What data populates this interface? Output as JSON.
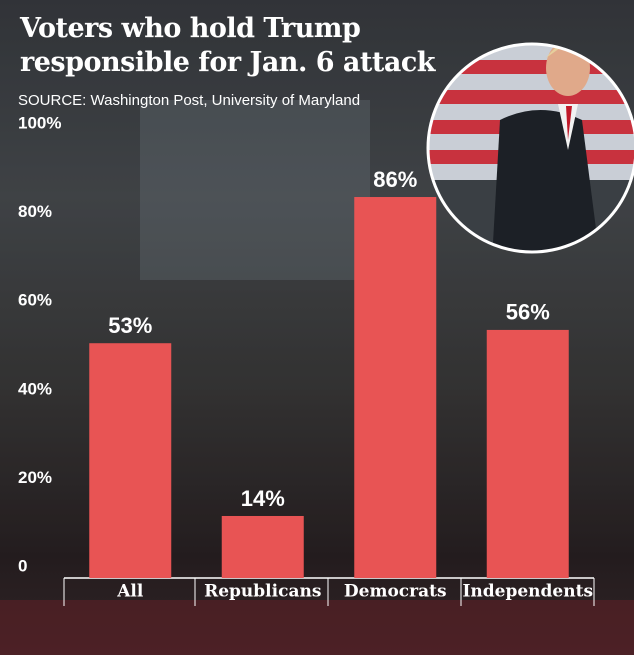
{
  "chart_data": {
    "type": "bar",
    "title": "Voters who hold Trump responsible for Jan. 6 attack",
    "subtitle": "SOURCE: Washington Post, University of Maryland",
    "categories": [
      "All",
      "Republicans",
      "Democrats",
      "Independents"
    ],
    "values": [
      53,
      14,
      86,
      56
    ],
    "value_labels": [
      "53%",
      "14%",
      "86%",
      "56%"
    ],
    "color": "#e85454",
    "ylim": [
      0,
      100
    ],
    "yticks": [
      0,
      {
        "value": 20,
        "label": "20%"
      },
      {
        "value": 40,
        "label": "40%"
      },
      {
        "value": 60,
        "label": "60%"
      },
      {
        "value": 80,
        "label": "80%"
      },
      {
        "value": 100,
        "label": "100%"
      }
    ],
    "grid": false
  }
}
